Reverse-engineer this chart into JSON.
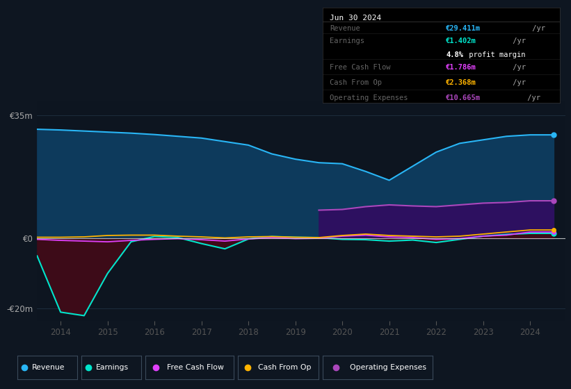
{
  "bg_color": "#0e1621",
  "chart_bg": "#0d1520",
  "years": [
    2013.5,
    2014.0,
    2014.5,
    2015.0,
    2015.5,
    2016.0,
    2016.5,
    2017.0,
    2017.5,
    2018.0,
    2018.5,
    2019.0,
    2019.5,
    2020.0,
    2020.5,
    2021.0,
    2021.5,
    2022.0,
    2022.5,
    2023.0,
    2023.5,
    2024.0,
    2024.5
  ],
  "revenue": [
    31000,
    30800,
    30500,
    30200,
    29900,
    29500,
    29000,
    28500,
    27500,
    26500,
    24000,
    22500,
    21500,
    21200,
    19000,
    16500,
    20500,
    24500,
    27000,
    28000,
    29000,
    29411,
    29411
  ],
  "earnings": [
    -5000,
    -21000,
    -22000,
    -10000,
    -1000,
    500,
    200,
    -1500,
    -3000,
    -200,
    500,
    300,
    200,
    -300,
    -400,
    -800,
    -500,
    -1200,
    -300,
    600,
    1100,
    1402,
    1402
  ],
  "free_cash_flow": [
    -300,
    -600,
    -800,
    -1000,
    -600,
    -300,
    -100,
    -400,
    -800,
    -200,
    200,
    -100,
    0,
    600,
    900,
    400,
    200,
    -300,
    -100,
    600,
    900,
    1786,
    1786
  ],
  "cash_from_op": [
    300,
    300,
    400,
    800,
    900,
    900,
    600,
    400,
    100,
    400,
    500,
    300,
    200,
    800,
    1200,
    800,
    600,
    400,
    600,
    1200,
    1800,
    2368,
    2368
  ],
  "opex_years": [
    2019.5,
    2020.0,
    2020.5,
    2021.0,
    2021.5,
    2022.0,
    2022.5,
    2023.0,
    2023.5,
    2024.0,
    2024.5
  ],
  "op_expenses": [
    8000,
    8200,
    9000,
    9500,
    9200,
    9000,
    9500,
    10000,
    10200,
    10665,
    10665
  ],
  "ytick_labels": [
    "€35m",
    "€0",
    "-€20m"
  ],
  "ytick_values": [
    35000,
    0,
    -20000
  ],
  "xlim": [
    2013.5,
    2024.75
  ],
  "ylim": [
    -23500,
    39000
  ],
  "revenue_color": "#29b6f6",
  "revenue_fill": "#0d3a5c",
  "earnings_color": "#00e5cc",
  "earnings_fill": "#3d0b18",
  "free_cash_flow_color": "#e040fb",
  "cash_from_op_color": "#ffb300",
  "op_expenses_color": "#ab47bc",
  "op_expenses_fill": "#2d1060",
  "zero_line_color": "#dddddd",
  "grid_color": "#1e2d3d",
  "info_box": {
    "date": "Jun 30 2024",
    "revenue_label": "Revenue",
    "revenue_value": "€29.411m",
    "earnings_label": "Earnings",
    "earnings_value": "€1.402m",
    "profit_margin_pct": "4.8%",
    "profit_margin_text": " profit margin",
    "fcf_label": "Free Cash Flow",
    "fcf_value": "€1.786m",
    "cash_label": "Cash From Op",
    "cash_value": "€2.368m",
    "opex_label": "Operating Expenses",
    "opex_value": "€10.665m"
  },
  "legend_items": [
    "Revenue",
    "Earnings",
    "Free Cash Flow",
    "Cash From Op",
    "Operating Expenses"
  ],
  "legend_colors": [
    "#29b6f6",
    "#00e5cc",
    "#e040fb",
    "#ffb300",
    "#ab47bc"
  ]
}
